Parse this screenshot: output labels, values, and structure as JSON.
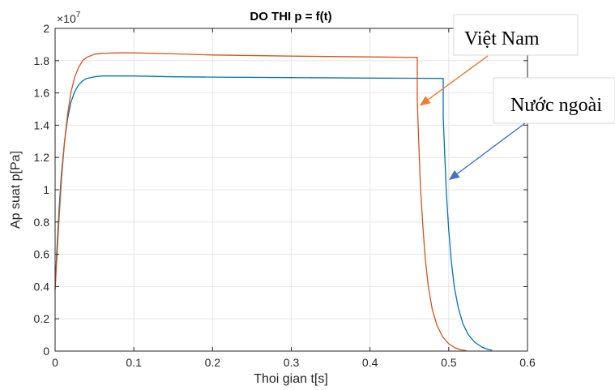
{
  "chart_data": {
    "type": "line",
    "title": "DO THI p = f(t)",
    "xlabel": "Thoi gian t[s]",
    "ylabel": "Ap suat p[Pa]",
    "y_multiplier": {
      "base": "×10",
      "exponent": "7"
    },
    "xlim": [
      0,
      0.6
    ],
    "ylim": [
      0,
      2
    ],
    "xticks": [
      "0",
      "0.1",
      "0.2",
      "0.3",
      "0.4",
      "0.5",
      "0.6"
    ],
    "yticks": [
      "0",
      "0.2",
      "0.4",
      "0.6",
      "0.8",
      "1",
      "1.2",
      "1.4",
      "1.6",
      "1.8",
      "2"
    ],
    "grid": true,
    "series": [
      {
        "color": "#0072BD",
        "x": [
          0,
          0.002,
          0.005,
          0.008,
          0.012,
          0.016,
          0.02,
          0.025,
          0.03,
          0.035,
          0.04,
          0.05,
          0.06,
          0.08,
          0.1,
          0.15,
          0.2,
          0.3,
          0.4,
          0.493,
          0.493,
          0.495,
          0.497,
          0.5,
          0.503,
          0.507,
          0.512,
          0.518,
          0.525,
          0.533,
          0.542,
          0.55,
          0.555
        ],
        "y": [
          0.38,
          0.6,
          0.88,
          1.1,
          1.3,
          1.44,
          1.54,
          1.61,
          1.65,
          1.675,
          1.69,
          1.7,
          1.705,
          1.705,
          1.705,
          1.7,
          1.698,
          1.695,
          1.692,
          1.69,
          1.45,
          1.2,
          0.98,
          0.75,
          0.57,
          0.4,
          0.27,
          0.17,
          0.1,
          0.055,
          0.025,
          0.01,
          0.005
        ]
      },
      {
        "color": "#D95319",
        "x": [
          0,
          0.002,
          0.005,
          0.008,
          0.012,
          0.016,
          0.02,
          0.025,
          0.03,
          0.035,
          0.04,
          0.05,
          0.06,
          0.08,
          0.1,
          0.15,
          0.2,
          0.3,
          0.4,
          0.46,
          0.46,
          0.462,
          0.464,
          0.467,
          0.47,
          0.474,
          0.479,
          0.485,
          0.492,
          0.5,
          0.508,
          0.515,
          0.522
        ],
        "y": [
          0.38,
          0.55,
          0.82,
          1.06,
          1.3,
          1.47,
          1.6,
          1.7,
          1.76,
          1.8,
          1.82,
          1.84,
          1.845,
          1.848,
          1.848,
          1.842,
          1.835,
          1.828,
          1.823,
          1.82,
          1.55,
          1.28,
          1.02,
          0.78,
          0.58,
          0.4,
          0.26,
          0.16,
          0.09,
          0.045,
          0.02,
          0.008,
          0.003
        ]
      }
    ],
    "annotations": [
      {
        "text": "Việt Nam",
        "color": "#ED7D31",
        "arrow_to": [
          0.463,
          1.52
        ]
      },
      {
        "text": "Nước ngoài",
        "color": "#4472C4",
        "arrow_to": [
          0.5,
          1.06
        ]
      }
    ]
  }
}
